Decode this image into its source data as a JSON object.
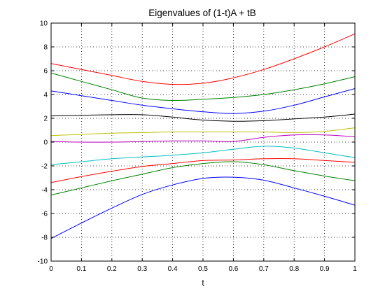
{
  "chart_data": {
    "type": "line",
    "title": "Eigenvalues of (1-t)A + tB",
    "xlabel": "t",
    "ylabel": "",
    "xlim": [
      0,
      1
    ],
    "ylim": [
      -10,
      10
    ],
    "xticks": [
      0,
      0.1,
      0.2,
      0.3,
      0.4,
      0.5,
      0.6,
      0.7,
      0.8,
      0.9,
      1
    ],
    "yticks": [
      -10,
      -8,
      -6,
      -4,
      -2,
      0,
      2,
      4,
      6,
      8,
      10
    ],
    "grid": true,
    "x": [
      0,
      0.1,
      0.2,
      0.3,
      0.4,
      0.5,
      0.6,
      0.7,
      0.8,
      0.9,
      1
    ],
    "series": [
      {
        "color": "#ff0000",
        "values": [
          6.6,
          6.1,
          5.6,
          5.1,
          4.85,
          4.95,
          5.4,
          6.1,
          7.0,
          8.0,
          9.1
        ]
      },
      {
        "color": "#008000",
        "values": [
          5.8,
          5.1,
          4.4,
          3.7,
          3.5,
          3.6,
          3.75,
          4.0,
          4.4,
          4.9,
          5.5
        ]
      },
      {
        "color": "#0000ff",
        "values": [
          4.3,
          3.9,
          3.5,
          3.1,
          2.8,
          2.55,
          2.4,
          2.6,
          3.1,
          3.8,
          4.5
        ]
      },
      {
        "color": "#000000",
        "values": [
          2.2,
          2.25,
          2.3,
          2.3,
          2.1,
          1.85,
          1.75,
          1.8,
          1.95,
          2.1,
          2.35
        ]
      },
      {
        "color": "#bfbf00",
        "values": [
          0.55,
          0.65,
          0.75,
          0.8,
          0.85,
          0.85,
          0.85,
          0.85,
          0.8,
          0.9,
          1.2
        ]
      },
      {
        "color": "#bf00bf",
        "values": [
          0.05,
          0.0,
          0.0,
          0.05,
          0.1,
          0.1,
          0.05,
          0.4,
          0.6,
          0.6,
          0.45
        ]
      },
      {
        "color": "#00bfbf",
        "values": [
          -1.9,
          -1.65,
          -1.4,
          -1.25,
          -1.1,
          -0.9,
          -0.6,
          -0.35,
          -0.5,
          -0.9,
          -1.3
        ]
      },
      {
        "color": "#ff0000",
        "values": [
          -3.4,
          -2.9,
          -2.45,
          -2.05,
          -1.8,
          -1.55,
          -1.5,
          -1.4,
          -1.4,
          -1.55,
          -1.7
        ]
      },
      {
        "color": "#008000",
        "values": [
          -4.45,
          -3.85,
          -3.25,
          -2.7,
          -2.15,
          -1.8,
          -1.65,
          -1.9,
          -2.4,
          -2.85,
          -3.25
        ]
      },
      {
        "color": "#0000ff",
        "values": [
          -8.1,
          -6.8,
          -5.55,
          -4.4,
          -3.6,
          -3.05,
          -2.95,
          -3.2,
          -3.85,
          -4.55,
          -5.3
        ]
      }
    ]
  }
}
